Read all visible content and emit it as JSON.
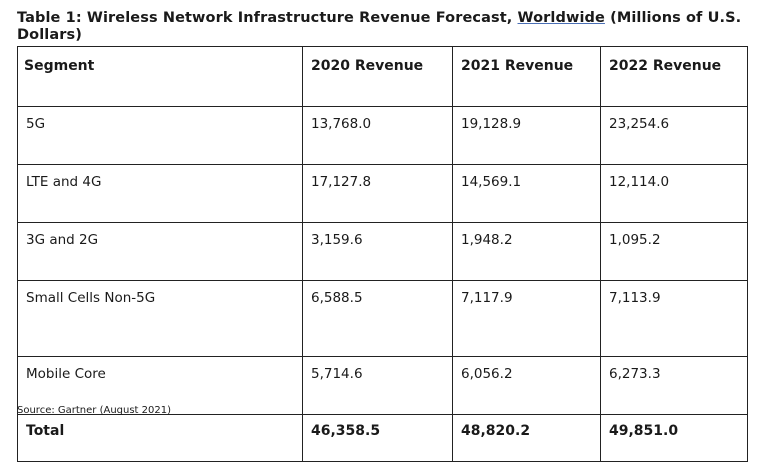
{
  "caption": {
    "lead": "Table 1: Wireless Network Infrastructure Revenue Forecast,",
    "keyword": "Worldwide",
    "tail": "(Millions of U.S. Dollars)"
  },
  "table": {
    "headers": [
      "Segment",
      "2020 Revenue",
      "2021 Revenue",
      "2022 Revenue"
    ],
    "rows": [
      {
        "segment": "5G",
        "y2020": "13,768.0",
        "y2021": "19,128.9",
        "y2022": "23,254.6"
      },
      {
        "segment": "LTE and 4G",
        "y2020": "17,127.8",
        "y2021": "14,569.1",
        "y2022": "12,114.0"
      },
      {
        "segment": "3G and 2G",
        "y2020": "3,159.6",
        "y2021": "1,948.2",
        "y2022": "1,095.2"
      },
      {
        "segment": "Small Cells Non-5G",
        "y2020": "6,588.5",
        "y2021": "7,117.9",
        "y2022": "7,113.9"
      },
      {
        "segment": "Mobile Core",
        "y2020": "5,714.6",
        "y2021": "6,056.2",
        "y2022": "6,273.3"
      }
    ],
    "total": {
      "segment": "Total",
      "y2020": "46,358.5",
      "y2021": "48,820.2",
      "y2022": "49,851.0"
    }
  },
  "source": "Source: Gartner (August 2021)"
}
